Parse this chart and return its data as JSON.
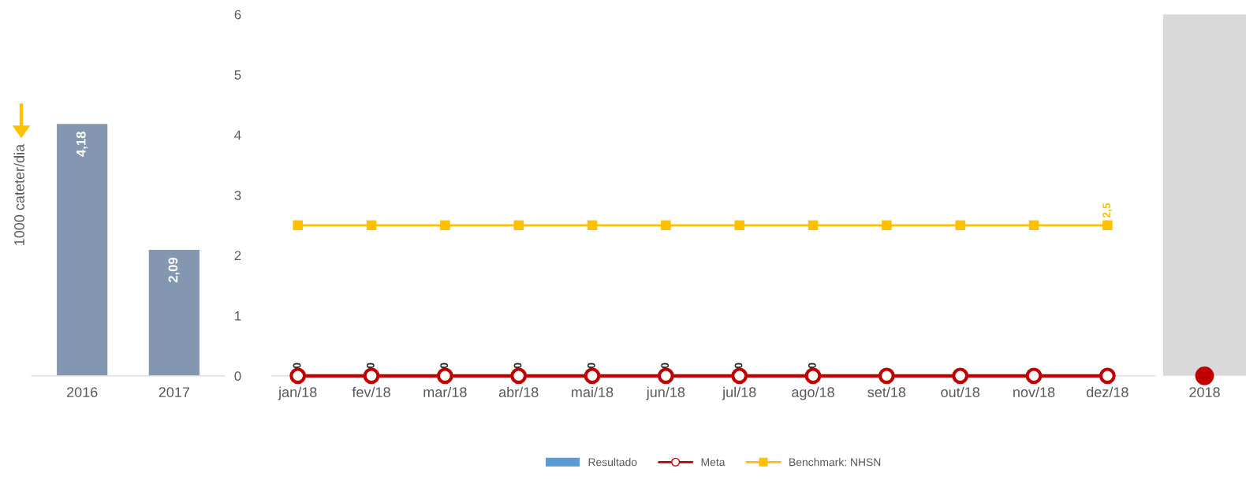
{
  "chart_data": [
    {
      "type": "bar",
      "ylabel": "1000 cateter/dia",
      "categories": [
        "2016",
        "2017"
      ],
      "series": [
        {
          "color": "#8497b0",
          "values": [
            4.18,
            2.09
          ],
          "value_labels": [
            "4,18",
            "2,09"
          ]
        }
      ],
      "ylim": [
        0,
        6
      ],
      "yticks": [
        0,
        1,
        2,
        3,
        4,
        5,
        6
      ],
      "tick_labels": "x",
      "grid": false
    },
    {
      "type": "line",
      "categories": [
        "jan/18",
        "fev/18",
        "mar/18",
        "abr/18",
        "mai/18",
        "jun/18",
        "jul/18",
        "ago/18",
        "set/18",
        "out/18",
        "nov/18",
        "dez/18"
      ],
      "series": [
        {
          "name": "Resultado",
          "type": "bar",
          "color": "#5b9bd5",
          "values": [
            0,
            0,
            0,
            0,
            0,
            0,
            0,
            0,
            null,
            null,
            null,
            null
          ],
          "value_labels": [
            "0",
            "0",
            "0",
            "0",
            "0",
            "0",
            "0",
            "0",
            null,
            null,
            null,
            null
          ]
        },
        {
          "name": "Meta",
          "type": "line",
          "color": "#c00000",
          "marker": "circle",
          "values": [
            0,
            0,
            0,
            0,
            0,
            0,
            0,
            0,
            0,
            0,
            0,
            0
          ]
        },
        {
          "name": "Benchmark: NHSN",
          "type": "line",
          "color": "#ffc000",
          "marker": "square",
          "values": [
            2.5,
            2.5,
            2.5,
            2.5,
            2.5,
            2.5,
            2.5,
            2.5,
            2.5,
            2.5,
            2.5,
            2.5
          ],
          "value_labels": [
            null,
            null,
            null,
            null,
            null,
            null,
            null,
            null,
            null,
            null,
            null,
            "2,5"
          ]
        }
      ],
      "ylim": [
        0,
        6
      ],
      "yticks": [
        0,
        1,
        2,
        3,
        4,
        5,
        6
      ],
      "legend": "bottom",
      "grid": false
    },
    {
      "type": "scatter",
      "categories": [
        "2018"
      ],
      "series": [
        {
          "color": "#c00000",
          "values": [
            0
          ]
        }
      ],
      "ylim": [
        0,
        6
      ],
      "yticks": [
        0,
        1,
        2,
        3,
        4,
        5,
        6
      ],
      "tick_labels": "x",
      "grid": false
    }
  ]
}
